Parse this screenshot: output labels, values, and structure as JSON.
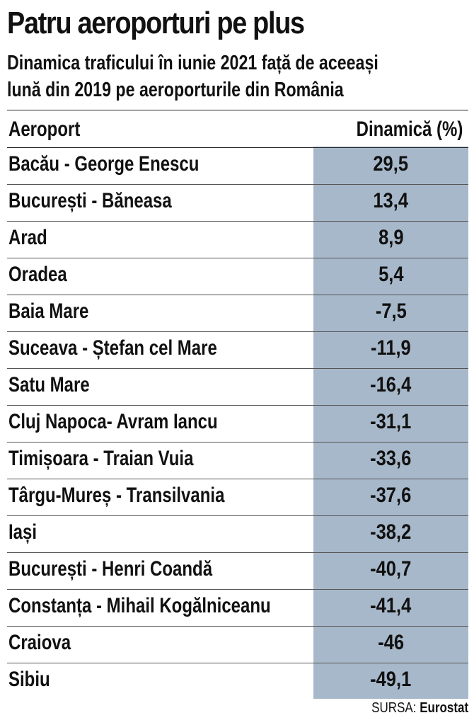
{
  "chart_data": {
    "type": "table",
    "title": "Patru aeroporturi pe plus",
    "subtitle_lines": [
      "Dinamica traficului în iunie 2021 față de aceeași",
      "lună din 2019 pe aeroporturile din România"
    ],
    "columns": [
      "Aeroport",
      "Dinamică (%)"
    ],
    "rows": [
      {
        "airport": "Bacău - George Enescu",
        "value": "29,5"
      },
      {
        "airport": "București - Băneasa",
        "value": "13,4"
      },
      {
        "airport": "Arad",
        "value": "8,9"
      },
      {
        "airport": "Oradea",
        "value": "5,4"
      },
      {
        "airport": "Baia Mare",
        "value": "-7,5"
      },
      {
        "airport": "Suceava - Ștefan cel Mare",
        "value": "-11,9"
      },
      {
        "airport": "Satu Mare",
        "value": "-16,4"
      },
      {
        "airport": "Cluj Napoca- Avram Iancu",
        "value": "-31,1"
      },
      {
        "airport": "Timișoara - Traian Vuia",
        "value": "-33,6"
      },
      {
        "airport": "Târgu-Mureș - Transilvania",
        "value": "-37,6"
      },
      {
        "airport": "Iași",
        "value": "-38,2"
      },
      {
        "airport": "București - Henri Coandă",
        "value": "-40,7"
      },
      {
        "airport": "Constanța - Mihail Kogălniceanu",
        "value": "-41,4"
      },
      {
        "airport": "Craiova",
        "value": "-46"
      },
      {
        "airport": "Sibiu",
        "value": "-49,1"
      }
    ],
    "value_column_color": "#a7b8ca"
  },
  "source": {
    "label": "SURSA:",
    "name": "Eurostat"
  }
}
